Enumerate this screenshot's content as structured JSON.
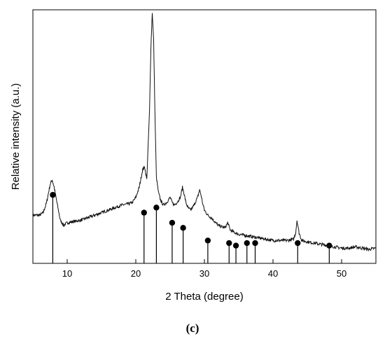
{
  "chart_data": {
    "type": "line",
    "xlabel": "2 Theta (degree)",
    "ylabel": "Relative intensity (a.u.)",
    "xlim": [
      5,
      55
    ],
    "ylim": [
      0,
      100
    ],
    "xticks": [
      10,
      20,
      30,
      40,
      50
    ],
    "grid": false,
    "legend": "none",
    "panel_label": "(c)",
    "series": [
      {
        "style": "xrd-pattern",
        "x": [
          5,
          6,
          6.5,
          7,
          7.5,
          7.8,
          8.1,
          8.5,
          9,
          9.5,
          10,
          11,
          12,
          13,
          14,
          15,
          16,
          17,
          18,
          19,
          19.5,
          20,
          20.5,
          21,
          21.3,
          21.6,
          22,
          22.2,
          22.4,
          22.6,
          22.8,
          23,
          23.3,
          23.6,
          24,
          24.5,
          25,
          25.3,
          25.6,
          26,
          26.5,
          26.8,
          27,
          27.3,
          27.6,
          28,
          28.5,
          29,
          29.3,
          29.5,
          29.8,
          30,
          30.5,
          31,
          32,
          33,
          33.4,
          33.8,
          34.5,
          35,
          36,
          37,
          38,
          39,
          40,
          41,
          42,
          43,
          43.3,
          43.5,
          43.8,
          44.2,
          45,
          46,
          47,
          48,
          49,
          50,
          51,
          52,
          53,
          54,
          55
        ],
        "y": [
          19,
          19,
          20,
          24,
          31,
          33,
          30,
          24,
          17,
          15,
          16,
          16.5,
          17,
          18,
          19,
          20,
          21,
          22,
          23,
          23.5,
          24,
          26,
          30,
          37,
          38,
          33,
          60,
          85,
          99,
          88,
          58,
          34,
          28,
          25,
          23,
          24,
          26,
          24,
          23,
          24,
          26,
          30,
          28,
          24,
          22,
          21,
          23,
          26,
          29,
          27,
          23,
          21,
          19,
          18,
          15,
          14,
          16,
          13,
          12,
          11.5,
          11,
          10.5,
          10,
          9.5,
          9,
          9,
          9,
          9.5,
          12,
          17,
          12,
          9,
          8.5,
          8,
          7.5,
          7,
          6.5,
          6,
          6,
          6.5,
          6,
          5.5,
          6
        ]
      },
      {
        "style": "reference-lines",
        "x": [
          7.9,
          21.2,
          23.0,
          25.3,
          26.9,
          30.5,
          33.6,
          34.6,
          36.2,
          37.4,
          43.6,
          48.2
        ],
        "y": [
          27,
          20,
          22,
          16,
          14,
          9,
          8,
          7,
          8,
          8,
          8,
          7
        ]
      }
    ]
  }
}
